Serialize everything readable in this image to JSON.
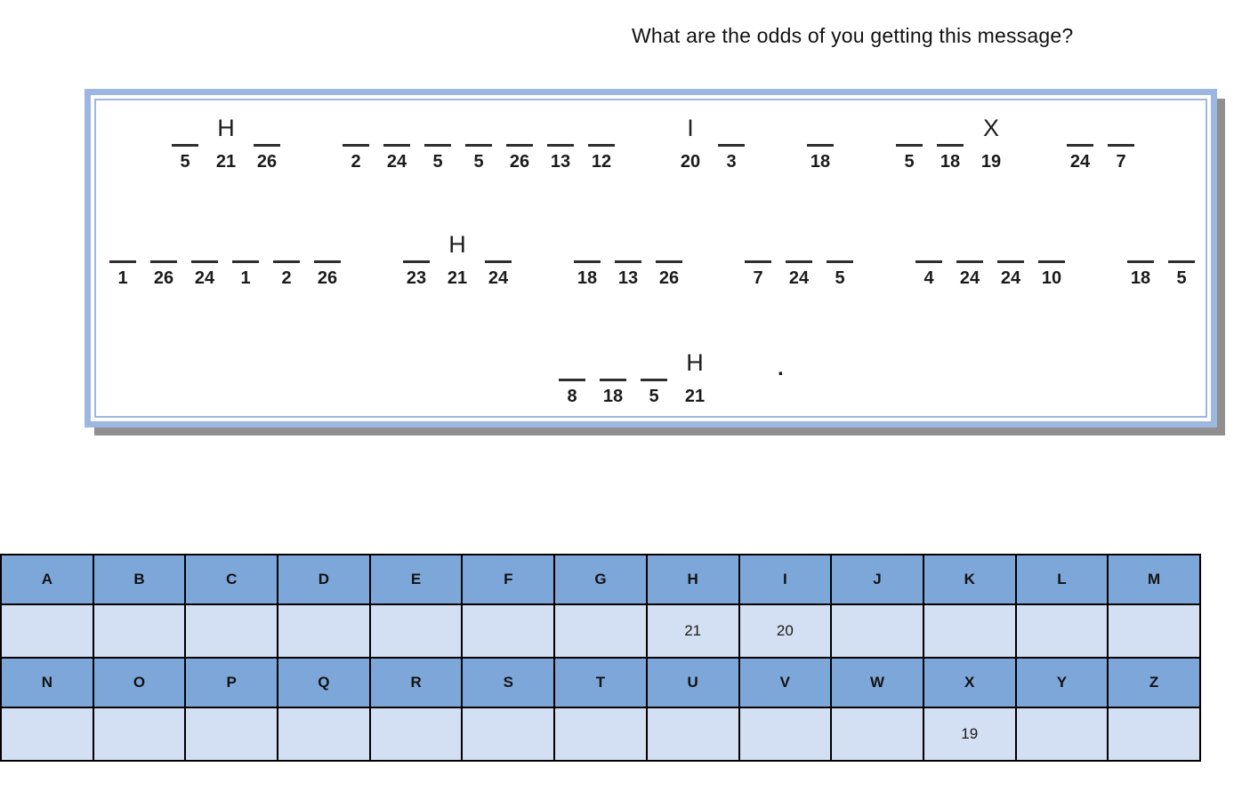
{
  "title": "What are the odds of you getting this message?",
  "puzzle": {
    "rows": [
      {
        "words": [
          {
            "slots": [
              {
                "num": "5"
              },
              {
                "num": "21",
                "letter": "H"
              },
              {
                "num": "26"
              }
            ]
          },
          {
            "slots": [
              {
                "num": "2"
              },
              {
                "num": "24"
              },
              {
                "num": "5"
              },
              {
                "num": "5"
              },
              {
                "num": "26"
              },
              {
                "num": "13"
              },
              {
                "num": "12"
              }
            ]
          },
          {
            "slots": [
              {
                "num": "20",
                "letter": "I"
              },
              {
                "num": "3"
              }
            ]
          },
          {
            "slots": [
              {
                "num": "18"
              }
            ]
          },
          {
            "slots": [
              {
                "num": "5"
              },
              {
                "num": "18"
              },
              {
                "num": "19",
                "letter": "X"
              }
            ]
          },
          {
            "slots": [
              {
                "num": "24"
              },
              {
                "num": "7"
              }
            ]
          }
        ],
        "suffix": ""
      },
      {
        "words": [
          {
            "slots": [
              {
                "num": "1"
              },
              {
                "num": "26"
              },
              {
                "num": "24"
              },
              {
                "num": "1"
              },
              {
                "num": "2"
              },
              {
                "num": "26"
              }
            ]
          },
          {
            "slots": [
              {
                "num": "23"
              },
              {
                "num": "21",
                "letter": "H"
              },
              {
                "num": "24"
              }
            ]
          },
          {
            "slots": [
              {
                "num": "18"
              },
              {
                "num": "13"
              },
              {
                "num": "26"
              }
            ]
          },
          {
            "slots": [
              {
                "num": "7"
              },
              {
                "num": "24"
              },
              {
                "num": "5"
              }
            ]
          },
          {
            "slots": [
              {
                "num": "4"
              },
              {
                "num": "24"
              },
              {
                "num": "24"
              },
              {
                "num": "10"
              }
            ]
          },
          {
            "slots": [
              {
                "num": "18"
              },
              {
                "num": "5"
              }
            ]
          }
        ],
        "suffix": ""
      },
      {
        "words": [
          {
            "slots": [
              {
                "num": "8"
              },
              {
                "num": "18"
              },
              {
                "num": "5"
              },
              {
                "num": "21",
                "letter": "H"
              }
            ]
          }
        ],
        "suffix": "."
      }
    ]
  },
  "key_table": {
    "rows": [
      {
        "kind": "letters",
        "cells": [
          "A",
          "B",
          "C",
          "D",
          "E",
          "F",
          "G",
          "H",
          "I",
          "J",
          "K",
          "L",
          "M"
        ]
      },
      {
        "kind": "numbers",
        "cells": [
          "",
          "",
          "",
          "",
          "",
          "",
          "",
          "21",
          "20",
          "",
          "",
          "",
          ""
        ]
      },
      {
        "kind": "letters",
        "cells": [
          "N",
          "O",
          "P",
          "Q",
          "R",
          "S",
          "T",
          "U",
          "V",
          "W",
          "X",
          "Y",
          "Z"
        ]
      },
      {
        "kind": "numbers",
        "cells": [
          "",
          "",
          "",
          "",
          "",
          "",
          "",
          "",
          "",
          "",
          "19",
          "",
          ""
        ]
      }
    ]
  },
  "colors": {
    "box_border": "#9db7e0",
    "box_shadow": "#8f8f8f",
    "table_header_fill": "#7da7d9",
    "table_cell_fill": "#d3dff2",
    "table_grid": "#000000",
    "text": "#1b1b1b"
  }
}
